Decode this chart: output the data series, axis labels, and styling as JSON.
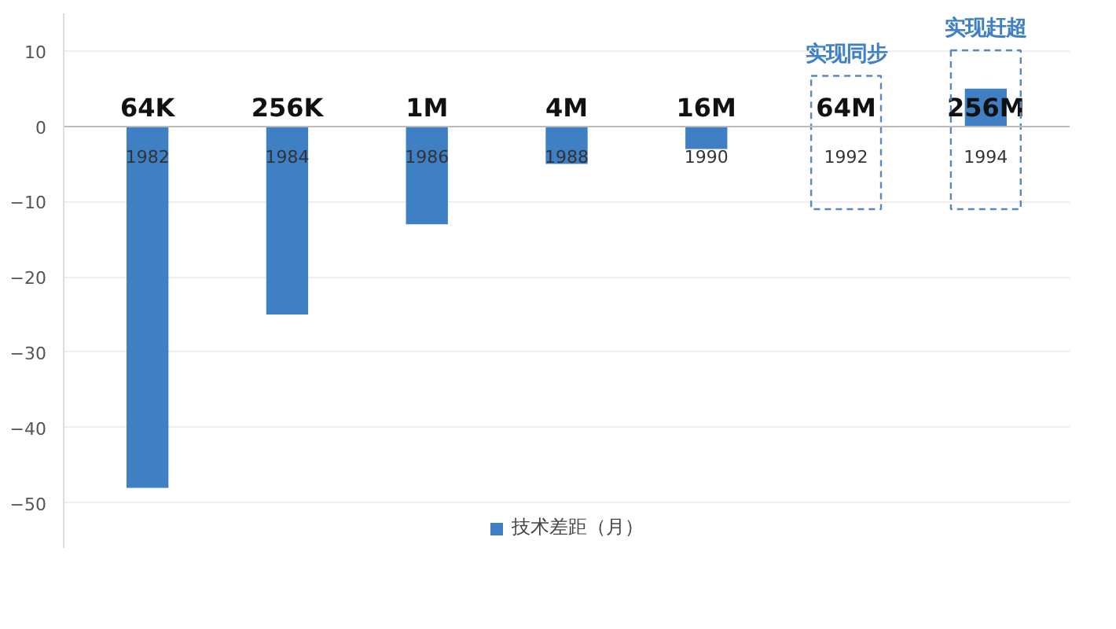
{
  "chart_data": {
    "type": "bar",
    "categories": [
      "1982",
      "1984",
      "1986",
      "1988",
      "1990",
      "1992",
      "1994"
    ],
    "series": [
      {
        "name": "技术差距（月）",
        "color": "#3f7fc4",
        "values": [
          -48,
          -25,
          -13,
          -5,
          -3,
          0,
          5
        ]
      }
    ],
    "ylim": [
      -56,
      15
    ],
    "yticks": [
      -50,
      -40,
      -30,
      -20,
      -10,
      0,
      10
    ],
    "grid": "y",
    "legend": "bottom",
    "annotations": [
      "64K",
      "256K",
      "1M",
      "4M",
      "16M",
      "64M",
      "256M",
      "实现同步",
      "实现赶超"
    ]
  }
}
